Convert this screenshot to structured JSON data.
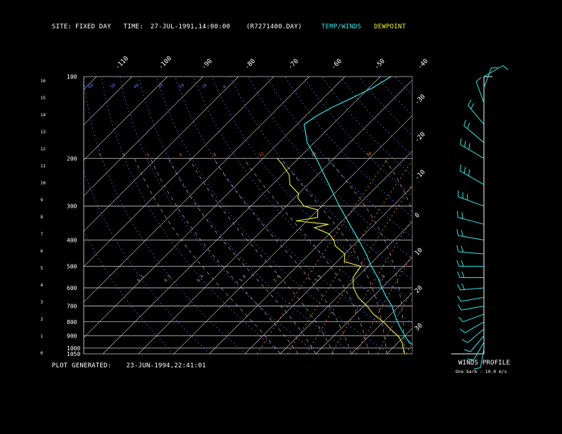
{
  "header": {
    "site_label": "SITE:",
    "site_value": "FIXED DAY",
    "time_label": "TIME:",
    "time_value": "27-JUL-1991,14:00:00",
    "file": "(R7271400.DAY)",
    "temp_legend": "TEMP/WINDS",
    "dew_legend": "DEWPOINT"
  },
  "footer": {
    "generated_label": "PLOT GENERATED:",
    "generated_value": "23-JUN-1994,22:41:01",
    "winds_title": "WINDS PROFILE",
    "barb_note": "One barb - 10.0 m/s"
  },
  "colors": {
    "temp": "#33e6e6",
    "dewpoint": "#f2f233",
    "isotherm": "#d8d8d8",
    "dry_adiabat": "#5577ff",
    "moist_adiabat": "#9999aa",
    "mixing_ratio": "#ee7744",
    "isobar": "#cccccc"
  },
  "chart_data": {
    "type": "skew-t",
    "pressure_labels": [
      100,
      200,
      300,
      400,
      500,
      600,
      700,
      800,
      900,
      1000,
      1050
    ],
    "height_labels": [
      "16",
      "15",
      "14",
      "13",
      "12",
      "11",
      "10",
      "9",
      "8",
      "7",
      "6",
      "5",
      "4",
      "3",
      "2",
      "1",
      "0"
    ],
    "temp_top_labels": [
      "-110",
      "-100",
      "-90",
      "-80",
      "-70",
      "-60",
      "-50",
      "-40"
    ],
    "temp_right_labels": [
      "-30",
      "-20",
      "-10",
      "0",
      "10",
      "20",
      "30"
    ],
    "dry_adiabat_labels": [
      "60",
      "50",
      "40",
      "30",
      "20",
      "10",
      "0"
    ],
    "mixing_ratio_labels": [
      "1",
      "2",
      "3",
      "5",
      "8",
      "12",
      "20",
      "30"
    ],
    "isobar_value_labels": [
      "0.1",
      "0.2",
      "0.4",
      "1.0",
      "2.0",
      "3.0",
      "5.0"
    ],
    "temperature_profile": [
      {
        "p": 1050,
        "t": 31
      },
      {
        "p": 1000,
        "t": 27
      },
      {
        "p": 950,
        "t": 23
      },
      {
        "p": 900,
        "t": 20
      },
      {
        "p": 850,
        "t": 17
      },
      {
        "p": 800,
        "t": 14
      },
      {
        "p": 750,
        "t": 11
      },
      {
        "p": 700,
        "t": 8
      },
      {
        "p": 650,
        "t": 4
      },
      {
        "p": 600,
        "t": 0
      },
      {
        "p": 550,
        "t": -4
      },
      {
        "p": 500,
        "t": -9
      },
      {
        "p": 450,
        "t": -14
      },
      {
        "p": 400,
        "t": -20
      },
      {
        "p": 350,
        "t": -27
      },
      {
        "p": 300,
        "t": -35
      },
      {
        "p": 250,
        "t": -44
      },
      {
        "p": 200,
        "t": -55
      },
      {
        "p": 175,
        "t": -62
      },
      {
        "p": 150,
        "t": -68
      },
      {
        "p": 140,
        "t": -67
      },
      {
        "p": 130,
        "t": -65
      },
      {
        "p": 120,
        "t": -62
      },
      {
        "p": 110,
        "t": -59
      },
      {
        "p": 100,
        "t": -57
      }
    ],
    "dewpoint_profile": [
      {
        "p": 1050,
        "t": 25
      },
      {
        "p": 1000,
        "t": 23
      },
      {
        "p": 950,
        "t": 21
      },
      {
        "p": 900,
        "t": 18
      },
      {
        "p": 850,
        "t": 14
      },
      {
        "p": 800,
        "t": 10
      },
      {
        "p": 750,
        "t": 5
      },
      {
        "p": 700,
        "t": 1
      },
      {
        "p": 650,
        "t": -4
      },
      {
        "p": 600,
        "t": -8
      },
      {
        "p": 550,
        "t": -11
      },
      {
        "p": 500,
        "t": -12
      },
      {
        "p": 480,
        "t": -18
      },
      {
        "p": 450,
        "t": -20
      },
      {
        "p": 420,
        "t": -25
      },
      {
        "p": 400,
        "t": -27
      },
      {
        "p": 380,
        "t": -30
      },
      {
        "p": 360,
        "t": -36
      },
      {
        "p": 350,
        "t": -33
      },
      {
        "p": 340,
        "t": -43
      },
      {
        "p": 330,
        "t": -38
      },
      {
        "p": 310,
        "t": -40
      },
      {
        "p": 300,
        "t": -45
      },
      {
        "p": 280,
        "t": -49
      },
      {
        "p": 270,
        "t": -50
      },
      {
        "p": 250,
        "t": -55
      },
      {
        "p": 230,
        "t": -58
      },
      {
        "p": 210,
        "t": -63
      },
      {
        "p": 200,
        "t": -66
      }
    ],
    "winds": [
      {
        "p": 1000,
        "dir": 190,
        "spd": 4
      },
      {
        "p": 950,
        "dir": 210,
        "spd": 6
      },
      {
        "p": 900,
        "dir": 220,
        "spd": 7
      },
      {
        "p": 850,
        "dir": 230,
        "spd": 8
      },
      {
        "p": 800,
        "dir": 240,
        "spd": 10
      },
      {
        "p": 750,
        "dir": 250,
        "spd": 11
      },
      {
        "p": 700,
        "dir": 260,
        "spd": 13
      },
      {
        "p": 650,
        "dir": 260,
        "spd": 14
      },
      {
        "p": 600,
        "dir": 265,
        "spd": 15
      },
      {
        "p": 550,
        "dir": 270,
        "spd": 16
      },
      {
        "p": 500,
        "dir": 270,
        "spd": 18
      },
      {
        "p": 450,
        "dir": 275,
        "spd": 20
      },
      {
        "p": 400,
        "dir": 280,
        "spd": 22
      },
      {
        "p": 350,
        "dir": 285,
        "spd": 24
      },
      {
        "p": 300,
        "dir": 290,
        "spd": 25
      },
      {
        "p": 250,
        "dir": 300,
        "spd": 26
      },
      {
        "p": 200,
        "dir": 300,
        "spd": 25
      },
      {
        "p": 175,
        "dir": 310,
        "spd": 22
      },
      {
        "p": 150,
        "dir": 320,
        "spd": 18
      },
      {
        "p": 125,
        "dir": 340,
        "spd": 12
      },
      {
        "p": 110,
        "dir": 20,
        "spd": 8
      },
      {
        "p": 100,
        "dir": 60,
        "spd": 10
      }
    ]
  }
}
